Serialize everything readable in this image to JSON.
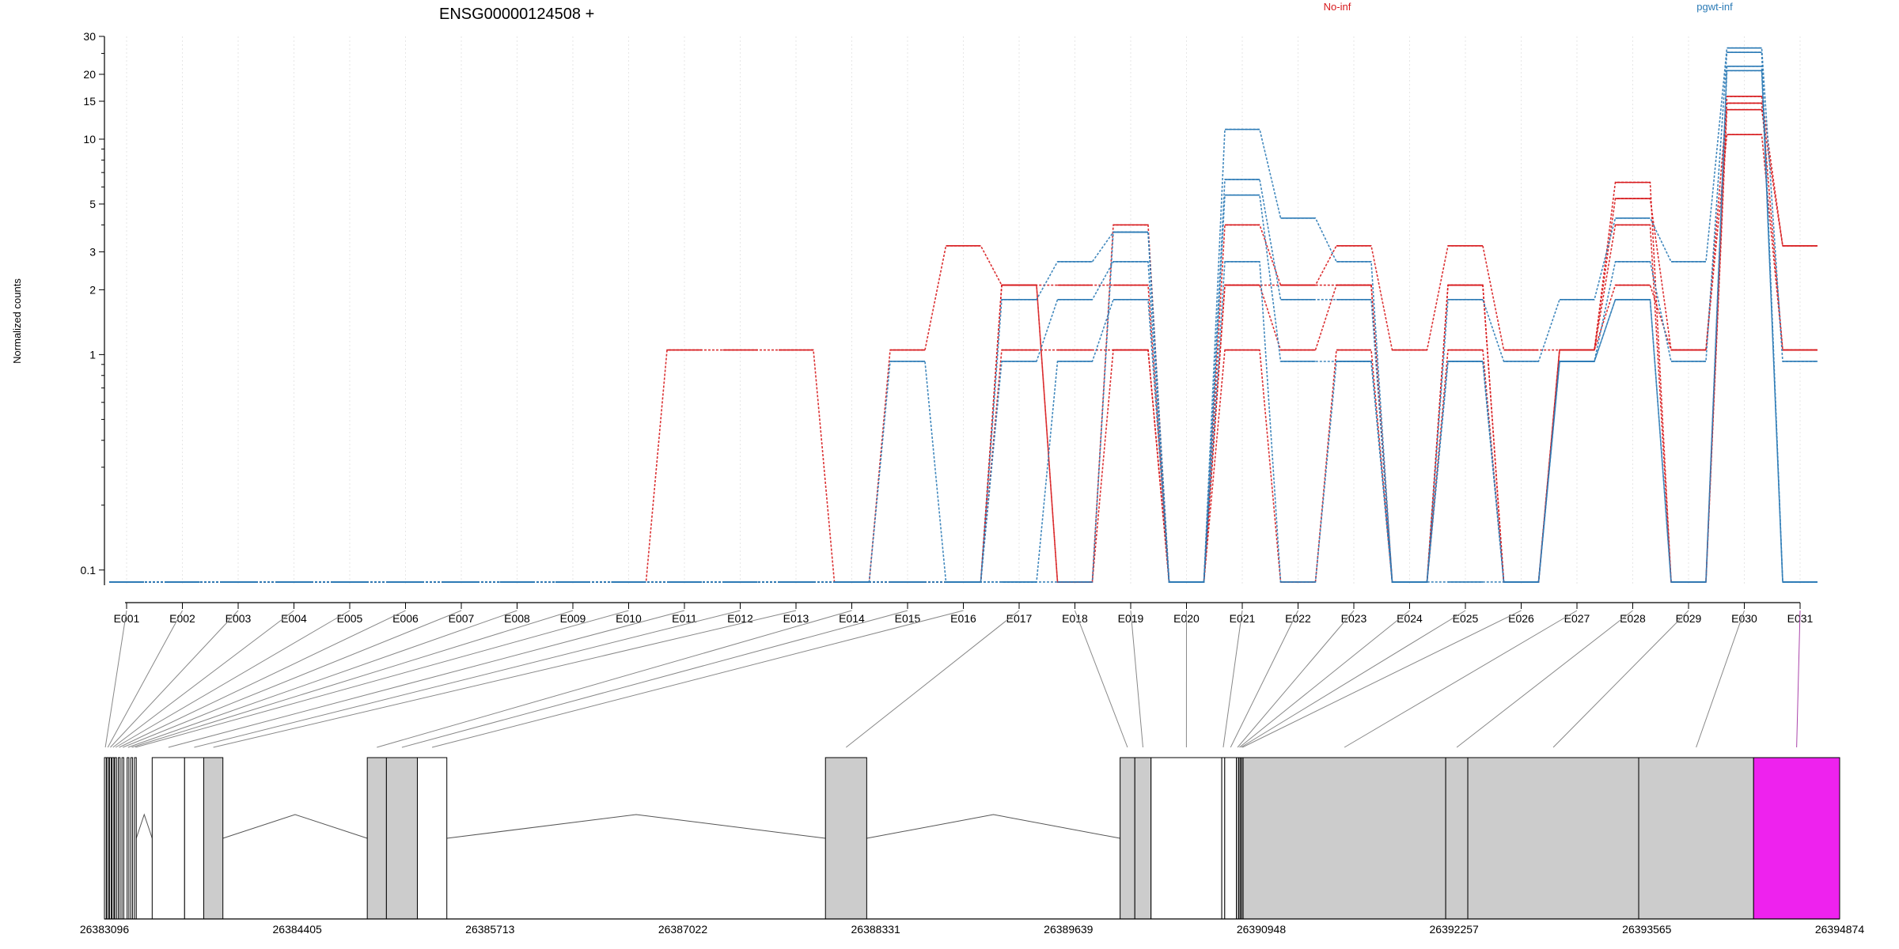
{
  "title": "ENSG00000124508 +",
  "legend": [
    {
      "label": "No-inf",
      "color": "#d7191c"
    },
    {
      "label": "pgwt-inf",
      "color": "#2c7bb6"
    }
  ],
  "ylabel": "Normalized counts",
  "chart_data": {
    "type": "line",
    "title": "ENSG00000124508 +",
    "ylabel": "Normalized counts",
    "yscale": "log",
    "ylim": [
      0.085,
      30
    ],
    "yticks": [
      {
        "v": 0.1,
        "label": "0.1"
      },
      {
        "v": 1,
        "label": "1"
      },
      {
        "v": 2,
        "label": "2"
      },
      {
        "v": 3,
        "label": "3"
      },
      {
        "v": 5,
        "label": "5"
      },
      {
        "v": 10,
        "label": "10"
      },
      {
        "v": 15,
        "label": "15"
      },
      {
        "v": 20,
        "label": "20"
      },
      {
        "v": 30,
        "label": "30"
      }
    ],
    "categories": [
      "E001",
      "E002",
      "E003",
      "E004",
      "E005",
      "E006",
      "E007",
      "E008",
      "E009",
      "E010",
      "E011",
      "E012",
      "E013",
      "E014",
      "E015",
      "E016",
      "E017",
      "E018",
      "E019",
      "E020",
      "E021",
      "E022",
      "E023",
      "E024",
      "E025",
      "E026",
      "E027",
      "E028",
      "E029",
      "E030",
      "E031"
    ],
    "series": [
      {
        "group": "No-inf",
        "color": "#d7191c",
        "values": [
          0.088,
          0.088,
          0.088,
          0.088,
          0.088,
          0.088,
          0.088,
          0.088,
          0.088,
          0.088,
          1.05,
          1.05,
          1.05,
          0.088,
          1.05,
          3.2,
          2.1,
          0.088,
          4.0,
          0.088,
          4.0,
          2.1,
          3.2,
          1.05,
          3.2,
          1.05,
          1.05,
          6.3,
          0.088,
          15.8,
          3.2
        ]
      },
      {
        "group": "No-inf",
        "color": "#d7191c",
        "values": [
          0.088,
          0.088,
          0.088,
          0.088,
          0.088,
          0.088,
          0.088,
          0.088,
          0.088,
          0.088,
          0.088,
          0.088,
          0.088,
          0.088,
          0.088,
          0.088,
          1.05,
          1.05,
          1.05,
          0.088,
          2.1,
          1.05,
          2.1,
          0.088,
          2.1,
          0.088,
          1.05,
          5.3,
          1.05,
          14.7,
          1.05
        ]
      },
      {
        "group": "No-inf",
        "color": "#d7191c",
        "values": [
          0.088,
          0.088,
          0.088,
          0.088,
          0.088,
          0.088,
          0.088,
          0.088,
          0.088,
          0.088,
          0.088,
          0.088,
          0.088,
          0.088,
          0.088,
          0.088,
          2.1,
          2.1,
          2.1,
          0.088,
          1.05,
          0.088,
          1.05,
          0.088,
          1.05,
          0.088,
          1.05,
          4.0,
          0.088,
          13.7,
          3.2
        ]
      },
      {
        "group": "No-inf",
        "color": "#d7191c",
        "values": [
          0.088,
          0.088,
          0.088,
          0.088,
          0.088,
          0.088,
          0.088,
          0.088,
          0.088,
          0.088,
          0.088,
          0.088,
          0.088,
          0.088,
          0.088,
          0.088,
          2.1,
          0.088,
          1.05,
          0.088,
          2.1,
          2.1,
          2.1,
          0.088,
          2.1,
          0.088,
          1.05,
          2.1,
          1.05,
          10.5,
          1.05
        ]
      },
      {
        "group": "pgwt-inf",
        "color": "#2c7bb6",
        "values": [
          0.088,
          0.088,
          0.088,
          0.088,
          0.088,
          0.088,
          0.088,
          0.088,
          0.088,
          0.088,
          0.088,
          0.088,
          0.088,
          0.088,
          0.93,
          0.088,
          1.8,
          2.7,
          3.7,
          0.088,
          11.1,
          4.3,
          2.7,
          0.088,
          1.8,
          0.93,
          1.8,
          4.3,
          2.7,
          26.5,
          0.93
        ]
      },
      {
        "group": "pgwt-inf",
        "color": "#2c7bb6",
        "values": [
          0.088,
          0.088,
          0.088,
          0.088,
          0.088,
          0.088,
          0.088,
          0.088,
          0.088,
          0.088,
          0.088,
          0.088,
          0.088,
          0.088,
          0.088,
          0.088,
          0.93,
          1.8,
          2.7,
          0.088,
          6.5,
          1.8,
          1.8,
          0.088,
          0.93,
          0.088,
          0.93,
          2.7,
          0.93,
          25.3,
          0.088
        ]
      },
      {
        "group": "pgwt-inf",
        "color": "#2c7bb6",
        "values": [
          0.088,
          0.088,
          0.088,
          0.088,
          0.088,
          0.088,
          0.088,
          0.088,
          0.088,
          0.088,
          0.088,
          0.088,
          0.088,
          0.088,
          0.088,
          0.088,
          0.088,
          0.93,
          1.8,
          0.088,
          5.5,
          0.93,
          0.93,
          0.088,
          0.93,
          0.088,
          0.93,
          1.8,
          0.088,
          21.8,
          0.088
        ]
      },
      {
        "group": "pgwt-inf",
        "color": "#2c7bb6",
        "values": [
          0.088,
          0.088,
          0.088,
          0.088,
          0.088,
          0.088,
          0.088,
          0.088,
          0.088,
          0.088,
          0.088,
          0.088,
          0.088,
          0.088,
          0.088,
          0.088,
          0.088,
          0.088,
          3.7,
          0.088,
          2.7,
          0.088,
          0.93,
          0.088,
          0.088,
          0.088,
          0.93,
          1.8,
          0.088,
          20.8,
          0.088
        ]
      }
    ]
  },
  "gene_model": {
    "coordinate_labels": [
      "26383096",
      "26384405",
      "26385713",
      "26387022",
      "26388331",
      "26389639",
      "26390948",
      "26392257",
      "26393565",
      "26394874"
    ],
    "coord_range": [
      26383096,
      26394874
    ],
    "exons": [
      {
        "id": "E001",
        "start": 26383096,
        "end": 26383108,
        "fill": "#ffffff"
      },
      {
        "id": "E002",
        "start": 26383113,
        "end": 26383125,
        "fill": "#ffffff"
      },
      {
        "id": "E003",
        "start": 26383130,
        "end": 26383142,
        "fill": "#ffffff"
      },
      {
        "id": "E004",
        "start": 26383148,
        "end": 26383160,
        "fill": "#ffffff"
      },
      {
        "id": "E005",
        "start": 26383166,
        "end": 26383178,
        "fill": "#ffffff"
      },
      {
        "id": "E006",
        "start": 26383190,
        "end": 26383202,
        "fill": "#ffffff"
      },
      {
        "id": "E007",
        "start": 26383215,
        "end": 26383227,
        "fill": "#ffffff"
      },
      {
        "id": "E008",
        "start": 26383250,
        "end": 26383262,
        "fill": "#ffffff"
      },
      {
        "id": "E009",
        "start": 26383275,
        "end": 26383287,
        "fill": "#ffffff"
      },
      {
        "id": "E010",
        "start": 26383300,
        "end": 26383312,
        "fill": "#ffffff"
      },
      {
        "id": "E011",
        "start": 26383420,
        "end": 26383640,
        "fill": "#ffffff"
      },
      {
        "id": "E012",
        "start": 26383640,
        "end": 26383770,
        "fill": "#ffffff"
      },
      {
        "id": "E013",
        "start": 26383770,
        "end": 26383900,
        "fill": "#cccccc"
      },
      {
        "id": "E014",
        "start": 26384880,
        "end": 26385010,
        "fill": "#cccccc"
      },
      {
        "id": "E015",
        "start": 26385010,
        "end": 26385220,
        "fill": "#cccccc"
      },
      {
        "id": "E016",
        "start": 26385220,
        "end": 26385420,
        "fill": "#ffffff"
      },
      {
        "id": "E017",
        "start": 26387990,
        "end": 26388270,
        "fill": "#cccccc"
      },
      {
        "id": "E018",
        "start": 26389990,
        "end": 26390090,
        "fill": "#cccccc"
      },
      {
        "id": "E019",
        "start": 26390090,
        "end": 26390200,
        "fill": "#cccccc"
      },
      {
        "id": "E020",
        "start": 26390200,
        "end": 26390680,
        "fill": "#ffffff"
      },
      {
        "id": "E021",
        "start": 26390680,
        "end": 26390700,
        "fill": "#ffffff"
      },
      {
        "id": "E022",
        "start": 26390700,
        "end": 26390780,
        "fill": "#ffffff"
      },
      {
        "id": "E023",
        "start": 26390780,
        "end": 26390795,
        "fill": "#cccccc"
      },
      {
        "id": "E024",
        "start": 26390795,
        "end": 26390805,
        "fill": "#cccccc"
      },
      {
        "id": "E025",
        "start": 26390805,
        "end": 26390815,
        "fill": "#cccccc"
      },
      {
        "id": "E026",
        "start": 26390815,
        "end": 26390825,
        "fill": "#cccccc"
      },
      {
        "id": "E027",
        "start": 26390825,
        "end": 26392200,
        "fill": "#cccccc"
      },
      {
        "id": "E028",
        "start": 26392200,
        "end": 26392350,
        "fill": "#cccccc"
      },
      {
        "id": "E029",
        "start": 26392350,
        "end": 26393510,
        "fill": "#cccccc"
      },
      {
        "id": "E030",
        "start": 26393510,
        "end": 26394290,
        "fill": "#cccccc"
      },
      {
        "id": "E031",
        "start": 26394290,
        "end": 26394874,
        "fill": "#ee22ee"
      }
    ],
    "introns": [
      [
        26383312,
        26383420
      ],
      [
        26383900,
        26384880
      ],
      [
        26385420,
        26387990
      ],
      [
        26388270,
        26389990
      ]
    ],
    "highlight_color": "#aa44aa"
  }
}
